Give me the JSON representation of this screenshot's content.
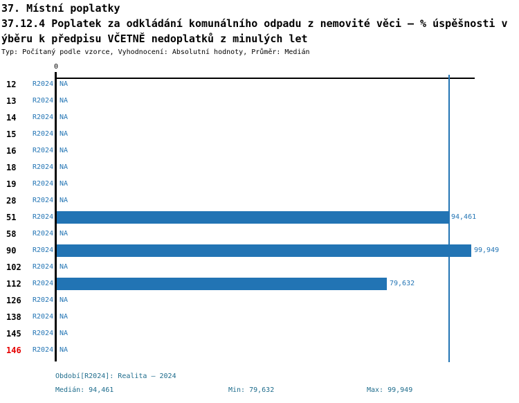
{
  "header": {
    "section_title": "37. Místní poplatky",
    "indicator_title_line1": "37.12.4 Poplatek za odkládání komunálního odpadu z nemovité věci – % úspěšnosti v",
    "indicator_title_line2": "ýběru k předpisu VČETNĚ nedoplatků z minulých let",
    "meta": "Typ: Počítaný podle vzorce, Vyhodnocení: Absolutní hodnoty, Průměr: Medián"
  },
  "chart_data": {
    "type": "bar",
    "orientation": "horizontal",
    "title": "37.12.4 Poplatek za odkládání komunálního odpadu z nemovité věci – % úspěšnosti výběru k předpisu VČETNĚ nedoplatků z minulých let",
    "series_name": "R2024",
    "na_label": "NA",
    "axis": {
      "tick_labels": [
        "0"
      ],
      "xlim": [
        0,
        100800
      ],
      "grid": false
    },
    "scale_max": 99949,
    "median_value": 94461,
    "min_value": 79632,
    "max_value": 99949,
    "categories": [
      "12",
      "13",
      "14",
      "15",
      "16",
      "18",
      "19",
      "28",
      "51",
      "58",
      "90",
      "102",
      "112",
      "126",
      "138",
      "145",
      "146"
    ],
    "rows": [
      {
        "id": "12",
        "period": "R2024",
        "value": null,
        "label": "NA",
        "highlight": false
      },
      {
        "id": "13",
        "period": "R2024",
        "value": null,
        "label": "NA",
        "highlight": false
      },
      {
        "id": "14",
        "period": "R2024",
        "value": null,
        "label": "NA",
        "highlight": false
      },
      {
        "id": "15",
        "period": "R2024",
        "value": null,
        "label": "NA",
        "highlight": false
      },
      {
        "id": "16",
        "period": "R2024",
        "value": null,
        "label": "NA",
        "highlight": false
      },
      {
        "id": "18",
        "period": "R2024",
        "value": null,
        "label": "NA",
        "highlight": false
      },
      {
        "id": "19",
        "period": "R2024",
        "value": null,
        "label": "NA",
        "highlight": false
      },
      {
        "id": "28",
        "period": "R2024",
        "value": null,
        "label": "NA",
        "highlight": false
      },
      {
        "id": "51",
        "period": "R2024",
        "value": 94461,
        "label": "94,461",
        "highlight": false
      },
      {
        "id": "58",
        "period": "R2024",
        "value": null,
        "label": "NA",
        "highlight": false
      },
      {
        "id": "90",
        "period": "R2024",
        "value": 99949,
        "label": "99,949",
        "highlight": false
      },
      {
        "id": "102",
        "period": "R2024",
        "value": null,
        "label": "NA",
        "highlight": false
      },
      {
        "id": "112",
        "period": "R2024",
        "value": 79632,
        "label": "79,632",
        "highlight": false
      },
      {
        "id": "126",
        "period": "R2024",
        "value": null,
        "label": "NA",
        "highlight": false
      },
      {
        "id": "138",
        "period": "R2024",
        "value": null,
        "label": "NA",
        "highlight": false
      },
      {
        "id": "145",
        "period": "R2024",
        "value": null,
        "label": "NA",
        "highlight": false
      },
      {
        "id": "146",
        "period": "R2024",
        "value": null,
        "label": "NA",
        "highlight": true
      }
    ]
  },
  "footer": {
    "period_line": "Období[R2024]: Realita – 2024",
    "median_line": "Medián: 94,461",
    "min_line": "Min: 79,632",
    "max_line": "Max: 99,949"
  },
  "colors": {
    "bar": "#2274B4",
    "accent_text": "#2274B4",
    "median_line": "#2274B4",
    "footer_text": "#1E6C8C",
    "highlight_text": "#E60000",
    "axis": "#000000"
  }
}
